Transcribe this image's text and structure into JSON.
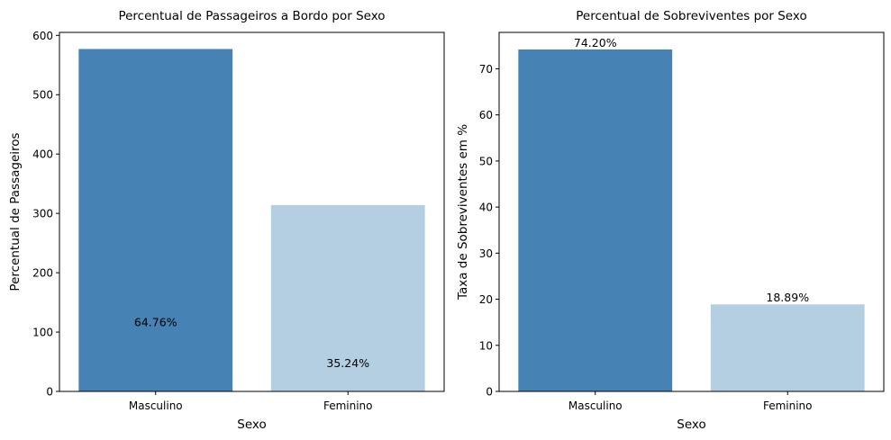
{
  "chart_data": [
    {
      "type": "bar",
      "title": "Percentual de Passageiros a Bordo por Sexo",
      "xlabel": "Sexo",
      "ylabel": "Percentual de Passageiros",
      "categories": [
        "Masculino",
        "Feminino"
      ],
      "values": [
        577,
        314
      ],
      "data_labels": [
        "64.76%",
        "35.24%"
      ],
      "ylim": [
        0,
        605
      ],
      "yticks": [
        0,
        100,
        200,
        300,
        400,
        500,
        600
      ],
      "colors": [
        "#4682b4",
        "#b4cfe1"
      ],
      "grid": false
    },
    {
      "type": "bar",
      "title": "Percentual de Sobreviventes por Sexo",
      "xlabel": "Sexo",
      "ylabel": "Taxa de Sobreviventes em %",
      "categories": [
        "Masculino",
        "Feminino"
      ],
      "values": [
        74.2,
        18.89
      ],
      "data_labels": [
        "74.20%",
        "18.89%"
      ],
      "ylim": [
        0,
        77.9
      ],
      "yticks": [
        0,
        10,
        20,
        30,
        40,
        50,
        60,
        70
      ],
      "colors": [
        "#4682b4",
        "#b4cfe1"
      ],
      "grid": false
    }
  ]
}
